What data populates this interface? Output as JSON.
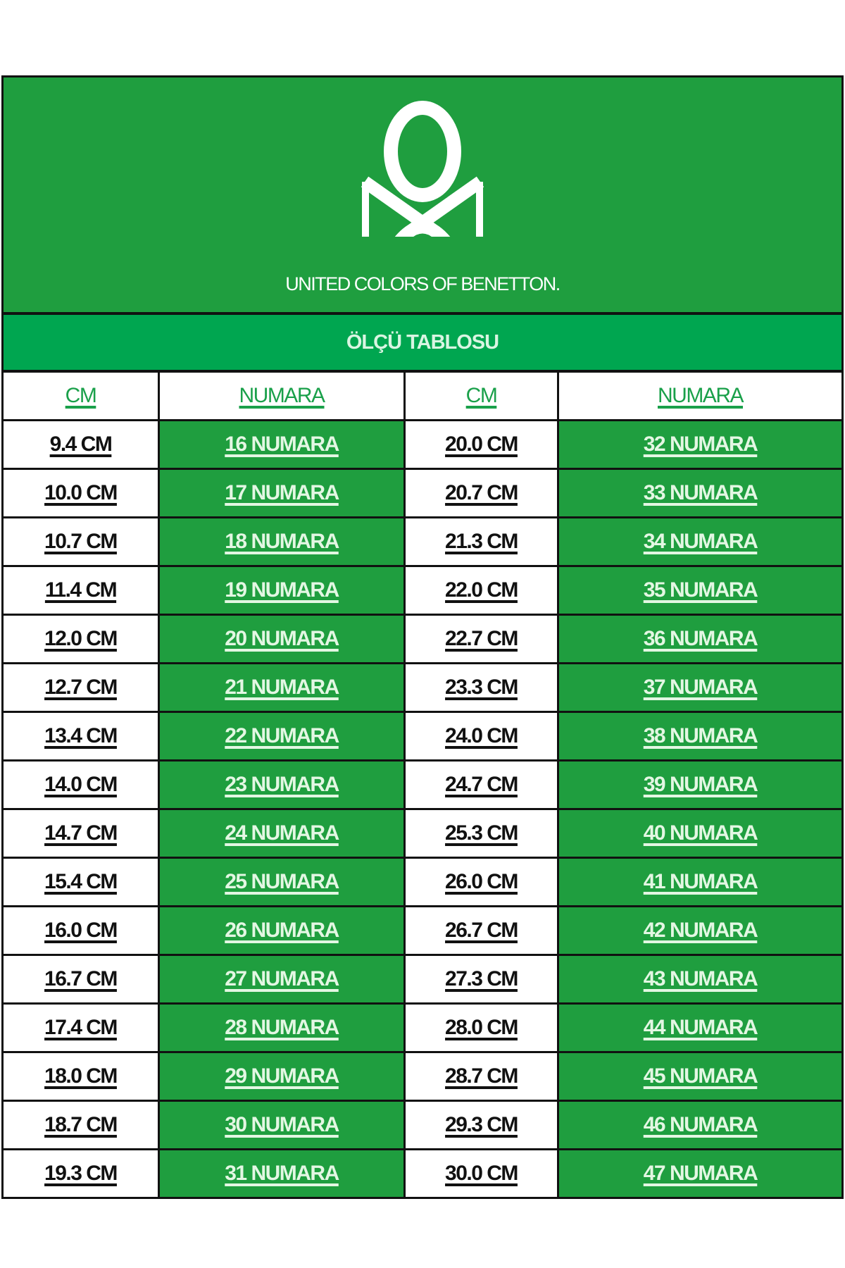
{
  "brand": {
    "name": "UNITED COLORS OF BENETTON.",
    "logo": "benetton-knot-logo"
  },
  "title": "ÖLÇÜ TABLOSU",
  "headers": [
    "CM",
    "NUMARA",
    "CM",
    "NUMARA"
  ],
  "colors": {
    "green": "#1f9e3f",
    "title_band": "#00a650",
    "header_text": "#1aa04a"
  },
  "rows": [
    [
      "9.4 CM",
      "16 NUMARA",
      "20.0 CM",
      "32 NUMARA"
    ],
    [
      "10.0 CM",
      "17 NUMARA",
      "20.7 CM",
      "33 NUMARA"
    ],
    [
      "10.7 CM",
      "18 NUMARA",
      "21.3 CM",
      "34 NUMARA"
    ],
    [
      "11.4 CM",
      "19 NUMARA",
      "22.0 CM",
      "35 NUMARA"
    ],
    [
      "12.0 CM",
      "20 NUMARA",
      "22.7 CM",
      "36 NUMARA"
    ],
    [
      "12.7 CM",
      "21 NUMARA",
      "23.3 CM",
      "37 NUMARA"
    ],
    [
      "13.4 CM",
      "22 NUMARA",
      "24.0 CM",
      "38 NUMARA"
    ],
    [
      "14.0 CM",
      "23 NUMARA",
      "24.7 CM",
      "39 NUMARA"
    ],
    [
      "14.7 CM",
      "24 NUMARA",
      "25.3 CM",
      "40 NUMARA"
    ],
    [
      "15.4 CM",
      "25 NUMARA",
      "26.0 CM",
      "41 NUMARA"
    ],
    [
      "16.0 CM",
      "26 NUMARA",
      "26.7 CM",
      "42 NUMARA"
    ],
    [
      "16.7 CM",
      "27 NUMARA",
      "27.3 CM",
      "43 NUMARA"
    ],
    [
      "17.4 CM",
      "28 NUMARA",
      "28.0 CM",
      "44 NUMARA"
    ],
    [
      "18.0 CM",
      "29 NUMARA",
      "28.7 CM",
      "45 NUMARA"
    ],
    [
      "18.7 CM",
      "30 NUMARA",
      "29.3 CM",
      "46 NUMARA"
    ],
    [
      "19.3 CM",
      "31 NUMARA",
      "30.0 CM",
      "47 NUMARA"
    ]
  ]
}
